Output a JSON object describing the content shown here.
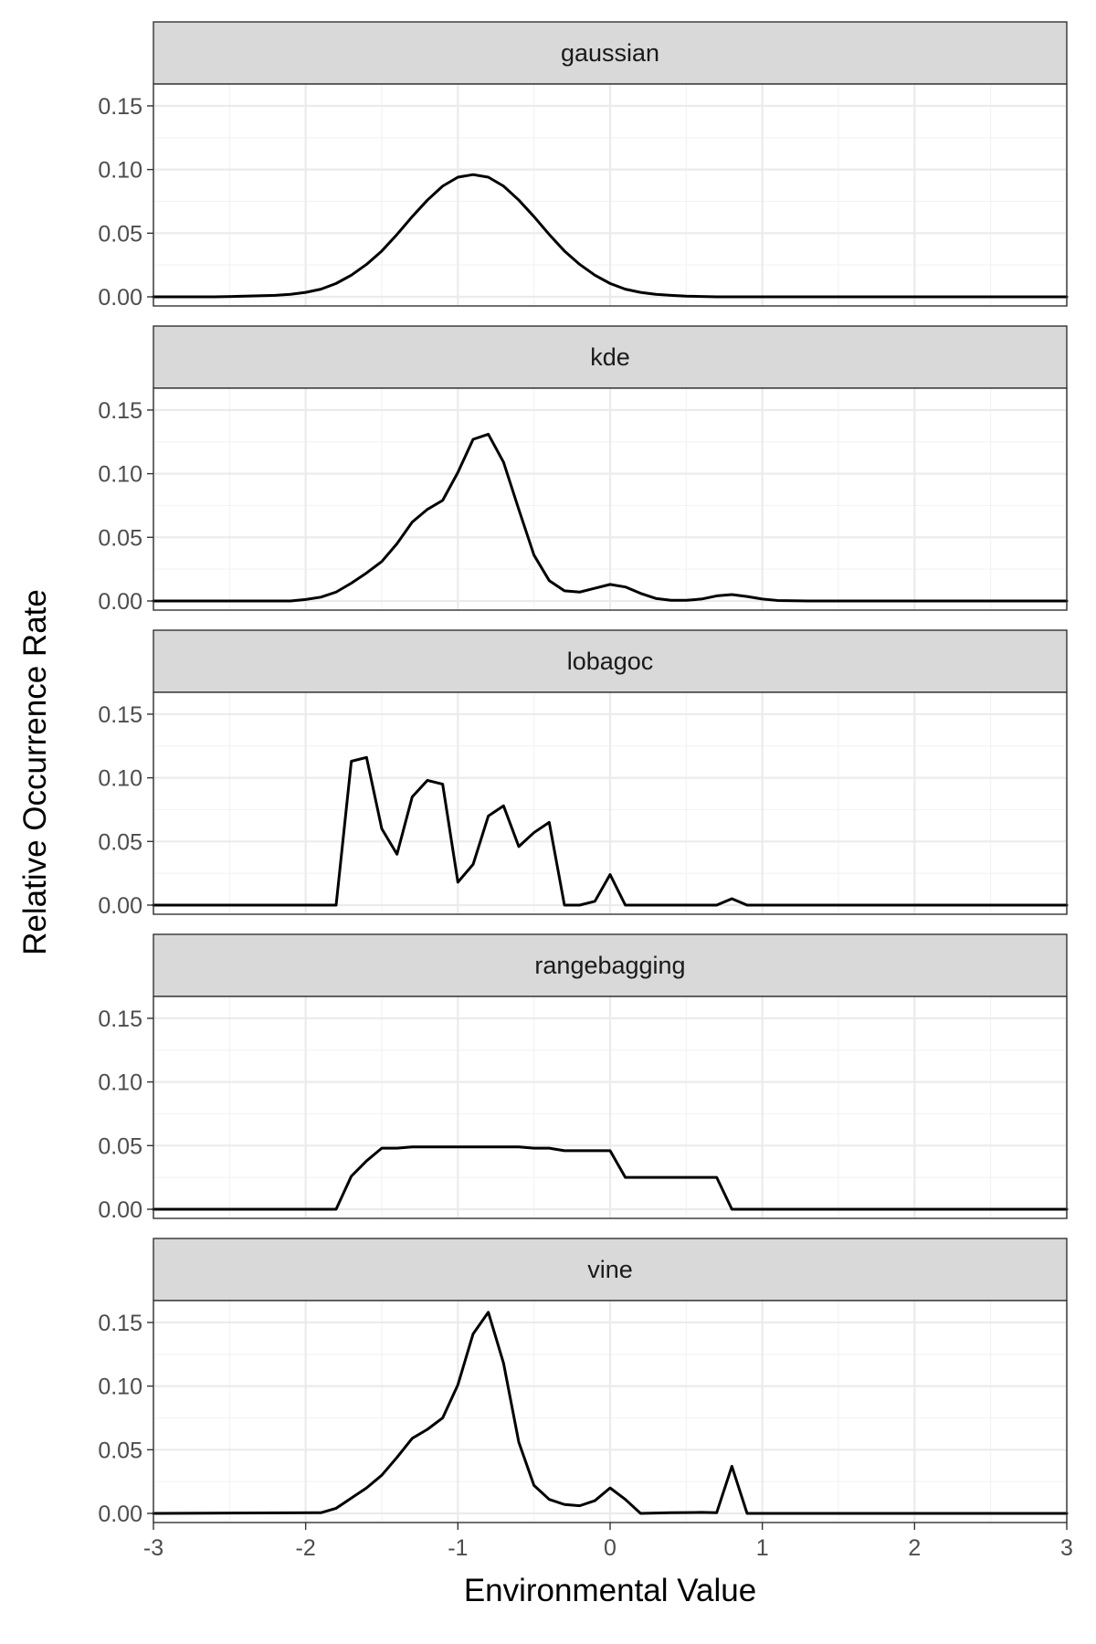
{
  "chart_data": {
    "type": "line",
    "layout": "faceted-vertical",
    "xlabel": "Environmental Value",
    "ylabel": "Relative Occurrence Rate",
    "xlim": [
      -3,
      3
    ],
    "ylim": [
      0,
      0.16
    ],
    "x_ticks": [
      -3,
      -2,
      -1,
      0,
      1,
      2,
      3
    ],
    "x_tick_labels": [
      "-3",
      "-2",
      "-1",
      "0",
      "1",
      "2",
      "3"
    ],
    "y_ticks": [
      0,
      0.05,
      0.1,
      0.15
    ],
    "y_tick_labels": [
      "0.00",
      "0.05",
      "0.10",
      "0.15"
    ],
    "grid": true,
    "line_color": "#000000",
    "strip_color": "#d9d9d9",
    "facets": [
      {
        "label": "gaussian",
        "x": [
          -3.0,
          -2.6,
          -2.4,
          -2.2,
          -2.1,
          -2.0,
          -1.9,
          -1.8,
          -1.7,
          -1.6,
          -1.5,
          -1.4,
          -1.3,
          -1.2,
          -1.1,
          -1.0,
          -0.9,
          -0.8,
          -0.7,
          -0.6,
          -0.5,
          -0.4,
          -0.3,
          -0.2,
          -0.1,
          0.0,
          0.1,
          0.2,
          0.3,
          0.4,
          0.5,
          0.7,
          3.0
        ],
        "y": [
          0.0,
          0.0,
          0.0005,
          0.0012,
          0.002,
          0.0035,
          0.006,
          0.0105,
          0.017,
          0.0255,
          0.036,
          0.049,
          0.063,
          0.076,
          0.087,
          0.094,
          0.096,
          0.094,
          0.087,
          0.076,
          0.063,
          0.049,
          0.036,
          0.0255,
          0.017,
          0.0105,
          0.006,
          0.0035,
          0.002,
          0.0012,
          0.0005,
          0.0,
          0.0
        ]
      },
      {
        "label": "kde",
        "x": [
          -3.0,
          -2.1,
          -2.0,
          -1.9,
          -1.8,
          -1.7,
          -1.6,
          -1.5,
          -1.4,
          -1.3,
          -1.2,
          -1.1,
          -1.0,
          -0.9,
          -0.8,
          -0.7,
          -0.6,
          -0.5,
          -0.4,
          -0.3,
          -0.2,
          -0.1,
          0.0,
          0.1,
          0.2,
          0.3,
          0.4,
          0.5,
          0.6,
          0.7,
          0.8,
          0.9,
          1.0,
          1.1,
          1.3,
          3.0
        ],
        "y": [
          0.0,
          0.0,
          0.0012,
          0.003,
          0.007,
          0.014,
          0.022,
          0.031,
          0.045,
          0.062,
          0.072,
          0.079,
          0.101,
          0.127,
          0.131,
          0.109,
          0.072,
          0.036,
          0.016,
          0.008,
          0.007,
          0.01,
          0.013,
          0.011,
          0.006,
          0.002,
          0.0005,
          0.0005,
          0.0015,
          0.004,
          0.005,
          0.0035,
          0.0015,
          0.0004,
          0.0,
          0.0
        ]
      },
      {
        "label": "lobagoc",
        "x": [
          -3.0,
          -1.8,
          -1.7,
          -1.6,
          -1.5,
          -1.4,
          -1.3,
          -1.2,
          -1.1,
          -1.0,
          -0.9,
          -0.8,
          -0.7,
          -0.6,
          -0.5,
          -0.4,
          -0.3,
          -0.2,
          -0.1,
          0.0,
          0.1,
          0.2,
          0.3,
          0.4,
          0.5,
          0.6,
          0.7,
          0.8,
          0.9,
          3.0
        ],
        "y": [
          0.0,
          0.0,
          0.113,
          0.116,
          0.06,
          0.04,
          0.085,
          0.098,
          0.095,
          0.018,
          0.032,
          0.07,
          0.078,
          0.046,
          0.057,
          0.065,
          0.0,
          0.0,
          0.003,
          0.024,
          0.0,
          0.0,
          0.0,
          0.0,
          0.0,
          0.0,
          0.0,
          0.005,
          0.0,
          0.0
        ]
      },
      {
        "label": "rangebagging",
        "x": [
          -3.0,
          -1.8,
          -1.7,
          -1.6,
          -1.5,
          -1.4,
          -1.3,
          -1.2,
          -1.1,
          -1.0,
          -0.9,
          -0.8,
          -0.7,
          -0.6,
          -0.5,
          -0.4,
          -0.3,
          -0.2,
          -0.1,
          0.0,
          0.1,
          0.2,
          0.3,
          0.4,
          0.5,
          0.6,
          0.7,
          0.8,
          0.9,
          3.0
        ],
        "y": [
          0.0,
          0.0,
          0.026,
          0.038,
          0.048,
          0.048,
          0.049,
          0.049,
          0.049,
          0.049,
          0.049,
          0.049,
          0.049,
          0.049,
          0.048,
          0.048,
          0.046,
          0.046,
          0.046,
          0.046,
          0.025,
          0.025,
          0.025,
          0.025,
          0.025,
          0.025,
          0.025,
          0.0,
          0.0,
          0.0
        ]
      },
      {
        "label": "vine",
        "x": [
          -3.0,
          -1.9,
          -1.8,
          -1.7,
          -1.6,
          -1.5,
          -1.4,
          -1.3,
          -1.2,
          -1.1,
          -1.0,
          -0.9,
          -0.8,
          -0.7,
          -0.6,
          -0.5,
          -0.4,
          -0.3,
          -0.2,
          -0.1,
          0.0,
          0.1,
          0.2,
          0.3,
          0.4,
          0.5,
          0.6,
          0.7,
          0.8,
          0.9,
          3.0
        ],
        "y": [
          0.0,
          0.0005,
          0.004,
          0.012,
          0.02,
          0.03,
          0.044,
          0.059,
          0.066,
          0.075,
          0.101,
          0.141,
          0.158,
          0.118,
          0.056,
          0.022,
          0.011,
          0.007,
          0.006,
          0.01,
          0.02,
          0.011,
          0.0,
          0.0003,
          0.0005,
          0.0006,
          0.0008,
          0.0005,
          0.037,
          0.0,
          0.0
        ]
      }
    ]
  }
}
